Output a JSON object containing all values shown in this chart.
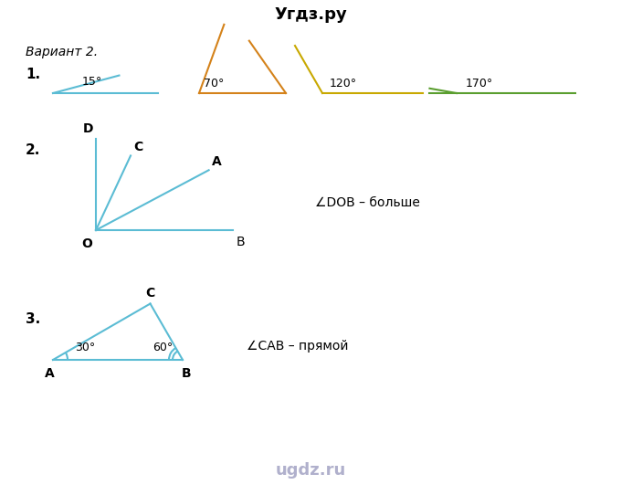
{
  "title_top": "Угдз.ру",
  "title_bottom": "ugdz.ru",
  "variant_text": "Вариант 2.",
  "bg_color": "#ffffff",
  "text_color": "#000000",
  "blue_color": "#5bbcd4",
  "orange_color": "#d4821a",
  "yellow_color": "#c8a800",
  "green_color": "#5a9e2f",
  "section1_label": "1.",
  "section2_label": "2.",
  "section3_label": "3.",
  "angle_labels": [
    "15°",
    "70°",
    "120°",
    "170°"
  ],
  "dob_text": "∠DOB – больше",
  "cab_text": "∠CAB – прямой"
}
